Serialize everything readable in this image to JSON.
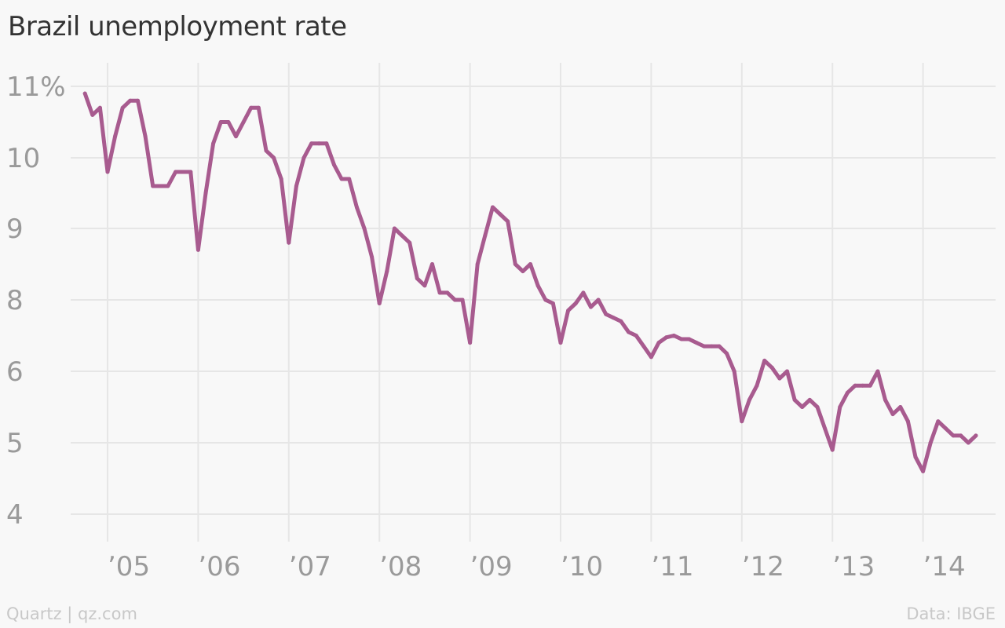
{
  "colors": {
    "background": "#f8f8f8",
    "series": "#a85b8f",
    "grid": "#e6e6e6",
    "tick": "#9a9a9a",
    "title": "#333333",
    "footer": "#c8c8c8"
  },
  "footer": {
    "credit": "Quartz | qz.com",
    "source": "Data: IBGE"
  },
  "chart_data": {
    "type": "line",
    "title": "Brazil unemployment rate",
    "xlabel": "",
    "ylabel": "",
    "grid": true,
    "x_ticks": [
      {
        "date": "2005-01",
        "label": "’05"
      },
      {
        "date": "2006-01",
        "label": "’06"
      },
      {
        "date": "2007-01",
        "label": "’07"
      },
      {
        "date": "2008-01",
        "label": "’08"
      },
      {
        "date": "2009-01",
        "label": "’09"
      },
      {
        "date": "2010-01",
        "label": "’10"
      },
      {
        "date": "2011-01",
        "label": "’11"
      },
      {
        "date": "2012-01",
        "label": "’12"
      },
      {
        "date": "2013-01",
        "label": "’13"
      },
      {
        "date": "2014-01",
        "label": "’14"
      }
    ],
    "y_ticks": [
      {
        "value": 11,
        "label": "11%"
      },
      {
        "value": 10,
        "label": "10"
      },
      {
        "value": 9,
        "label": "9"
      },
      {
        "value": 8,
        "label": "8"
      },
      {
        "value": 6,
        "label": "6"
      },
      {
        "value": 5,
        "label": "5"
      },
      {
        "value": 4,
        "label": "4"
      }
    ],
    "series": [
      {
        "x": [
          "2004-10",
          "2004-11",
          "2004-12",
          "2005-01",
          "2005-02",
          "2005-03",
          "2005-04",
          "2005-05",
          "2005-06",
          "2005-07",
          "2005-08",
          "2005-09",
          "2005-10",
          "2005-11",
          "2005-12",
          "2006-01",
          "2006-02",
          "2006-03",
          "2006-04",
          "2006-05",
          "2006-06",
          "2006-07",
          "2006-08",
          "2006-09",
          "2006-10",
          "2006-11",
          "2006-12",
          "2007-01",
          "2007-02",
          "2007-03",
          "2007-04",
          "2007-05",
          "2007-06",
          "2007-07",
          "2007-08",
          "2007-09",
          "2007-10",
          "2007-11",
          "2007-12",
          "2008-01",
          "2008-02",
          "2008-03",
          "2008-04",
          "2008-05",
          "2008-06",
          "2008-07",
          "2008-08",
          "2008-09",
          "2008-10",
          "2008-11",
          "2008-12",
          "2009-01",
          "2009-02",
          "2009-03",
          "2009-04",
          "2009-05",
          "2009-06",
          "2009-07",
          "2009-08",
          "2009-09",
          "2009-10",
          "2009-11",
          "2009-12",
          "2010-01",
          "2010-02",
          "2010-03",
          "2010-04",
          "2010-05",
          "2010-06",
          "2010-07",
          "2010-08",
          "2010-09",
          "2010-10",
          "2010-11",
          "2010-12",
          "2011-01",
          "2011-02",
          "2011-03",
          "2011-04",
          "2011-05",
          "2011-06",
          "2011-07",
          "2011-08",
          "2011-09",
          "2011-10",
          "2011-11",
          "2011-12",
          "2012-01",
          "2012-02",
          "2012-03",
          "2012-04",
          "2012-05",
          "2012-06",
          "2012-07",
          "2012-08",
          "2012-09",
          "2012-10",
          "2012-11",
          "2012-12",
          "2013-01",
          "2013-02",
          "2013-03",
          "2013-04",
          "2013-05",
          "2013-06",
          "2013-07",
          "2013-08",
          "2013-09",
          "2013-10",
          "2013-11",
          "2013-12",
          "2014-01",
          "2014-02",
          "2014-03",
          "2014-04",
          "2014-05",
          "2014-06",
          "2014-07",
          "2014-08"
        ],
        "values": [
          10.9,
          10.6,
          10.7,
          9.8,
          10.3,
          10.7,
          10.8,
          10.8,
          10.3,
          9.6,
          9.6,
          9.6,
          9.8,
          9.8,
          9.8,
          8.7,
          9.5,
          10.2,
          10.5,
          10.5,
          10.3,
          10.5,
          10.7,
          10.7,
          10.1,
          10.0,
          9.7,
          8.8,
          9.6,
          10.0,
          10.2,
          10.2,
          10.2,
          9.9,
          9.7,
          9.7,
          9.3,
          9.0,
          8.6,
          7.9,
          8.4,
          9.0,
          8.9,
          8.8,
          8.3,
          8.2,
          8.5,
          8.1,
          8.1,
          8.0,
          8.0,
          6.8,
          8.5,
          8.9,
          9.3,
          9.2,
          9.1,
          8.5,
          8.4,
          8.5,
          8.2,
          8.0,
          7.9,
          6.8,
          7.7,
          7.9,
          8.1,
          7.8,
          8.0,
          7.6,
          7.5,
          7.4,
          7.1,
          7.0,
          6.7,
          6.4,
          6.8,
          6.95,
          7.0,
          6.9,
          6.9,
          6.8,
          6.7,
          6.7,
          6.7,
          6.5,
          6.0,
          5.3,
          5.6,
          5.8,
          6.3,
          6.1,
          5.9,
          6.0,
          5.6,
          5.5,
          5.6,
          5.5,
          5.2,
          4.9,
          5.5,
          5.7,
          5.8,
          5.8,
          5.8,
          6.0,
          5.6,
          5.4,
          5.5,
          5.3,
          4.8,
          4.6,
          5.0,
          5.3,
          5.2,
          5.1,
          5.1,
          5.0,
          5.1
        ]
      }
    ]
  }
}
